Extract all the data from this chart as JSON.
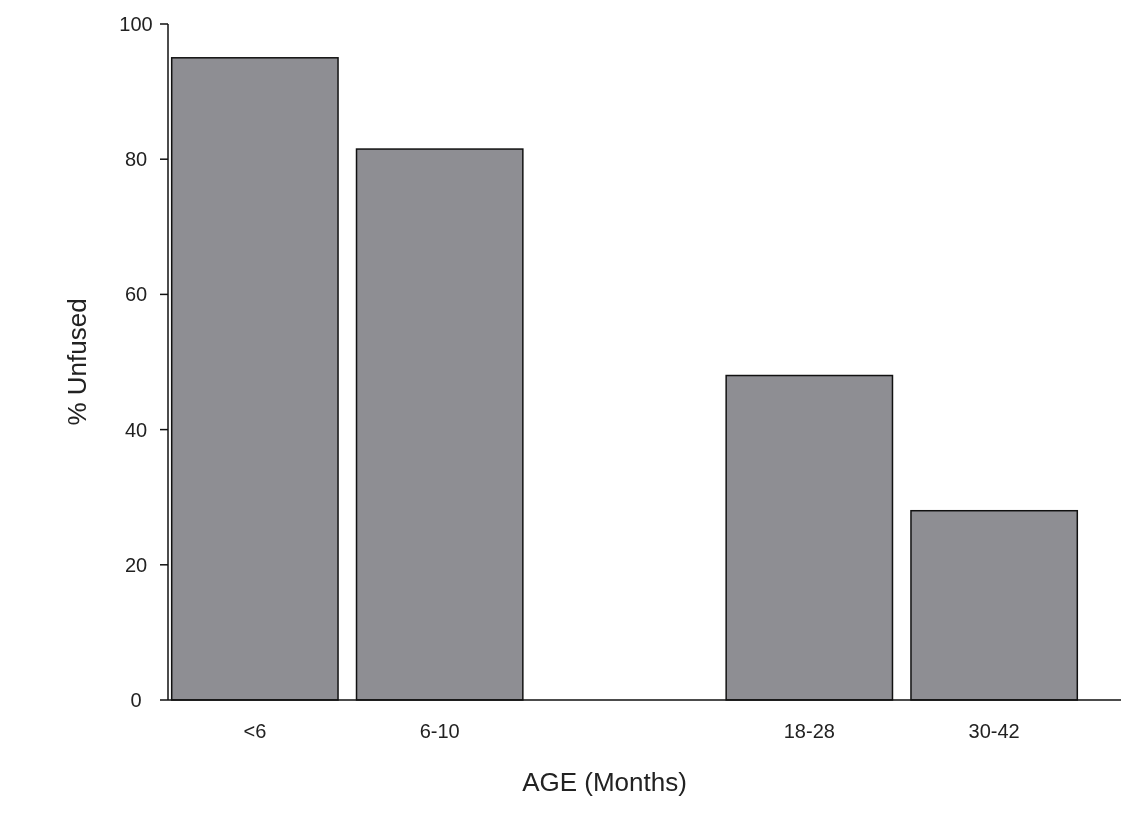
{
  "chart_data": {
    "type": "bar",
    "xlabel": "AGE (Months)",
    "ylabel": "% Unfused",
    "categories": [
      "<6",
      "6-10",
      null,
      "18-28",
      "30-42"
    ],
    "values": [
      95,
      81.5,
      null,
      48,
      28
    ],
    "color": "#8e8e93",
    "ylim": [
      0,
      100
    ],
    "yticks": [
      0,
      20,
      40,
      60,
      80,
      100
    ]
  }
}
